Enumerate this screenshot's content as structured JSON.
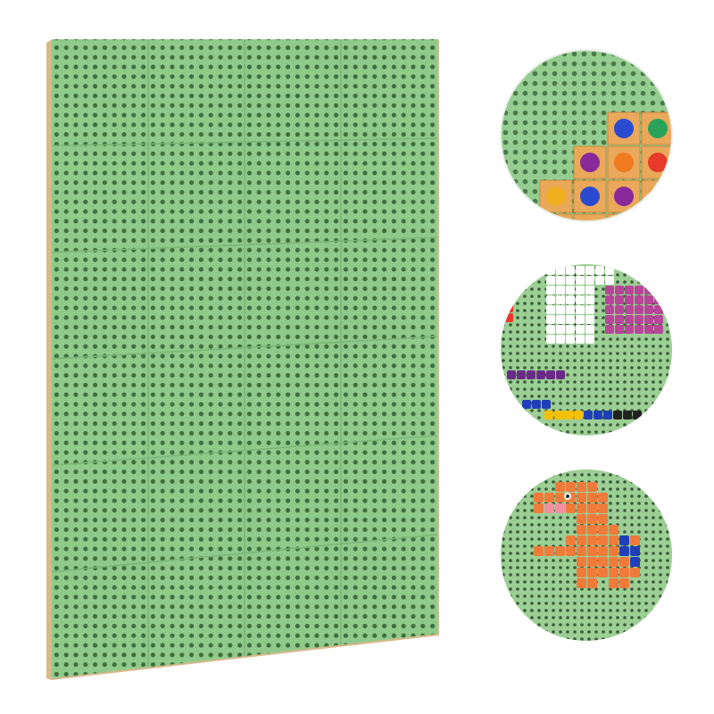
{
  "product": {
    "board": {
      "tile_columns": 4,
      "tile_rows": 6,
      "color": "#8fca8b",
      "hole_color": "#3f6e3f",
      "edge_color": "#d8b98a"
    },
    "detail_circles": [
      {
        "subject": "wooden-gem-blocks",
        "block_color": "#e9a85a",
        "gem_colors": [
          "#e83a2a",
          "#2aa35a",
          "#f0b020",
          "#2a4ad0",
          "#8a2a9a",
          "#f07a20"
        ]
      },
      {
        "subject": "pixel-bird-and-fish",
        "colors": [
          "#ffffff",
          "#b8459a",
          "#f5c000",
          "#1f3fb8",
          "#e83a2a",
          "#6b2a8a"
        ]
      },
      {
        "subject": "pixel-dinosaur",
        "colors": [
          "#f07a3a",
          "#f08fa0",
          "#1f3fb8",
          "#222222"
        ]
      }
    ]
  }
}
